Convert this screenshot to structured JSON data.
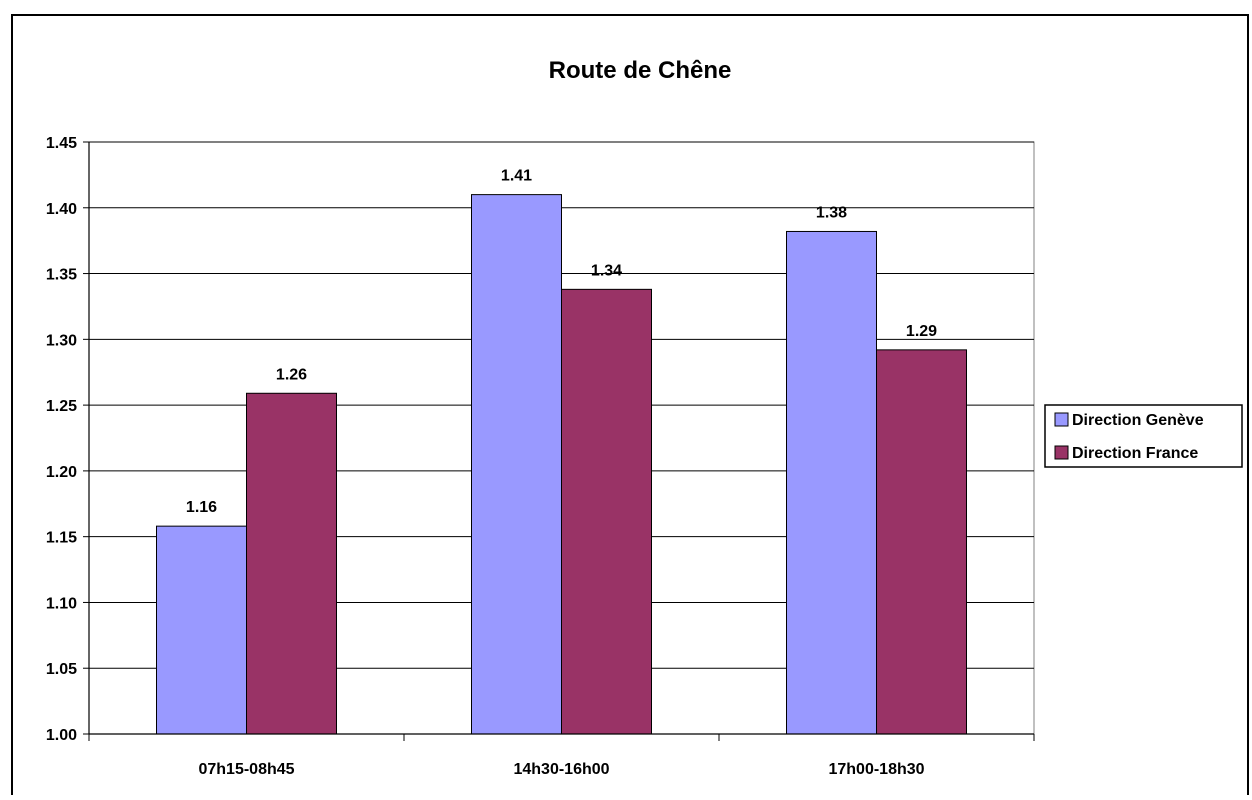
{
  "chart_data": {
    "type": "bar",
    "title": "Route de Chêne",
    "xlabel": "",
    "ylabel": "",
    "categories": [
      "07h15-08h45",
      "14h30-16h00",
      "17h00-18h30"
    ],
    "series": [
      {
        "name": "Direction Genève",
        "values": [
          1.158,
          1.41,
          1.382
        ],
        "labels": [
          "1.16",
          "1.41",
          "1.38"
        ],
        "color": "#9999FF"
      },
      {
        "name": "Direction France",
        "values": [
          1.259,
          1.338,
          1.292
        ],
        "labels": [
          "1.26",
          "1.34",
          "1.29"
        ],
        "color": "#993366"
      }
    ],
    "ylim": [
      1.0,
      1.45
    ],
    "yticks": [
      "1.00",
      "1.05",
      "1.10",
      "1.15",
      "1.20",
      "1.25",
      "1.30",
      "1.35",
      "1.40",
      "1.45"
    ],
    "grid": true,
    "legend_position": "right"
  }
}
